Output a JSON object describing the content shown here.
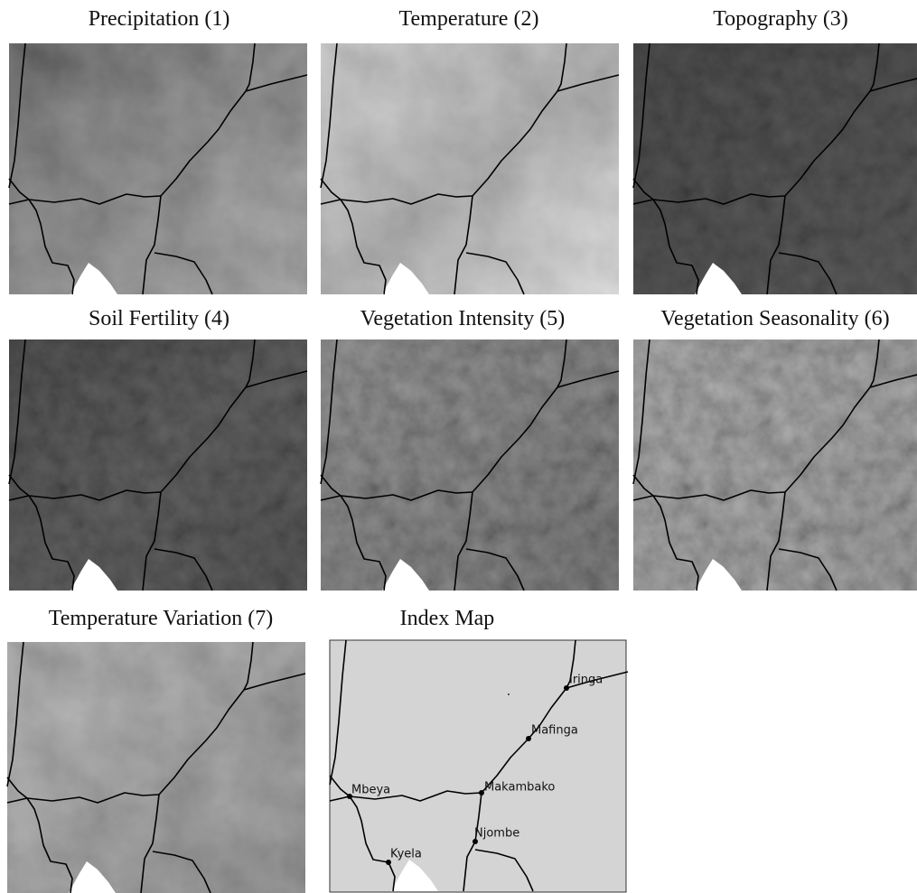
{
  "panels": [
    {
      "title": "Precipitation (1)"
    },
    {
      "title": "Temperature (2)"
    },
    {
      "title": "Topography (3)"
    },
    {
      "title": "Soil Fertility (4)"
    },
    {
      "title": "Vegetation Intensity (5)"
    },
    {
      "title": "Vegetation Seasonality (6)"
    },
    {
      "title": "Temperature Variation (7)"
    }
  ],
  "index_map": {
    "title": "Index Map",
    "cities": [
      {
        "label": "Iringa"
      },
      {
        "label": "Mafinga"
      },
      {
        "label": "Makambako"
      },
      {
        "label": "Mbeya"
      },
      {
        "label": "Njombe"
      },
      {
        "label": "Kyela"
      }
    ]
  }
}
